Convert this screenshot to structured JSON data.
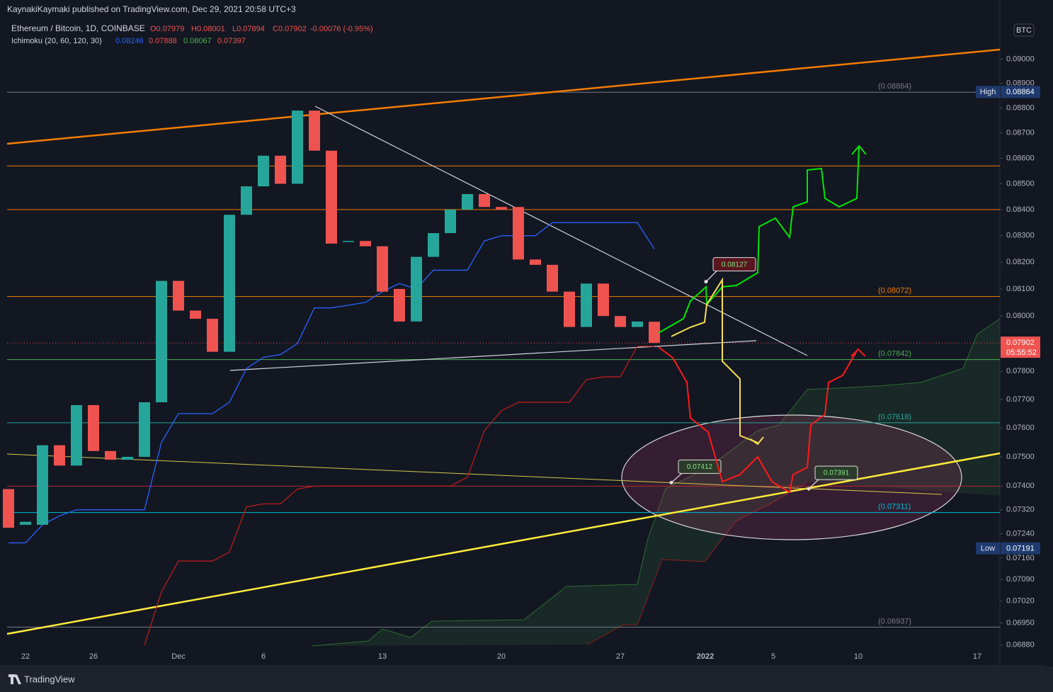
{
  "header": {
    "publisher": "KaynakiKaymaki published on TradingView.com, Dec 29, 2021 20:58 UTC+3",
    "symbol": "Ethereum / Bitcoin, 1D, COINBASE",
    "ohlc": [
      "O0.07979",
      "H0.08001",
      "L0.07894",
      "C0.07902",
      "-0.00076 (-0.95%)"
    ],
    "indicator": "Ichimoku (20, 60, 120, 30)",
    "indicator_values": [
      "0.08246",
      "0.07888",
      "0.08067",
      "0.07397"
    ]
  },
  "chart_data": {
    "type": "candlestick",
    "log_scale": true,
    "grid": false,
    "currency": "BTC",
    "categories": [
      null,
      "22",
      null,
      null,
      null,
      "26",
      null,
      null,
      null,
      null,
      "Dec",
      null,
      null,
      null,
      null,
      "6",
      null,
      null,
      null,
      null,
      null,
      null,
      "13",
      null,
      null,
      null,
      null,
      null,
      null,
      "20",
      null,
      null,
      null,
      null,
      null,
      null,
      "27",
      null,
      null,
      null,
      null,
      "2022",
      null,
      null,
      null,
      "5",
      null,
      null,
      null,
      null,
      "10",
      null,
      null,
      null,
      null,
      null,
      null,
      "17"
    ],
    "open": [
      0.0739,
      0.0727,
      0.0727,
      0.0754,
      0.0747,
      0.0768,
      0.0752,
      0.0749,
      0.075,
      0.0769,
      0.0813,
      0.0802,
      0.0799,
      0.0787,
      0.0838,
      0.0849,
      0.0861,
      0.085,
      0.0879,
      0.0863,
      0.0828,
      0.0828,
      0.0826,
      0.081,
      0.0798,
      0.0822,
      0.0831,
      0.084,
      0.0846,
      0.0841,
      0.0841,
      0.0821,
      0.0819,
      0.0809,
      0.0796,
      0.0812,
      0.08,
      0.0796,
      0.07979,
      null,
      null,
      null,
      null,
      null,
      null,
      null,
      null,
      null,
      null,
      null,
      null,
      null,
      null,
      null,
      null,
      null,
      null,
      null
    ],
    "high": {
      "text": "High",
      "value": 0.08864
    },
    "low": {
      "text": "Low",
      "value": 0.07191
    },
    "close": [
      0.0726,
      0.0728,
      0.0754,
      0.0747,
      0.0768,
      0.0752,
      0.0749,
      0.075,
      0.0769,
      0.0813,
      0.0802,
      0.0799,
      0.0787,
      0.0838,
      0.0849,
      0.0861,
      0.085,
      0.0879,
      0.0863,
      0.0827,
      0.0828,
      0.0826,
      0.0809,
      0.0798,
      0.0822,
      0.0831,
      0.084,
      0.0846,
      0.0841,
      0.084,
      0.0821,
      0.0819,
      0.0809,
      0.0796,
      0.0812,
      0.08,
      0.0796,
      0.0798,
      0.07902,
      null,
      null,
      null,
      null,
      null,
      null,
      null,
      null,
      null,
      null,
      null,
      null,
      null,
      null,
      null,
      null,
      null,
      null,
      null
    ],
    "up_color": "#26a69a",
    "down_color": "#ef5350",
    "series": [
      {
        "color": "#2962ff",
        "values": [
          0.0721,
          0.0721,
          0.0727,
          0.073,
          0.0732,
          0.0732,
          0.0732,
          0.0732,
          0.0732,
          0.0755,
          0.0765,
          0.0765,
          0.0765,
          0.0769,
          0.0781,
          0.0785,
          0.0786,
          0.079,
          0.0803,
          0.0803,
          0.0804,
          0.0805,
          0.0809,
          0.0812,
          0.081,
          0.0817,
          0.0817,
          0.0817,
          0.0828,
          0.083,
          0.083,
          0.083,
          0.0835,
          0.0835,
          0.0835,
          0.0835,
          0.0835,
          0.0835,
          0.0825,
          null,
          null,
          null,
          null,
          null,
          null,
          null,
          null,
          null,
          null,
          null,
          null,
          null,
          null,
          null,
          null,
          null,
          null,
          null
        ]
      },
      {
        "color": "#b71c1c",
        "values": [
          null,
          null,
          null,
          null,
          null,
          null,
          null,
          null,
          0.0688,
          0.0705,
          0.0715,
          0.0715,
          0.0715,
          0.0718,
          0.0733,
          0.0734,
          0.0734,
          0.0739,
          0.074,
          0.074,
          0.074,
          0.074,
          0.074,
          0.074,
          0.074,
          0.074,
          0.074,
          0.0743,
          0.0759,
          0.0766,
          0.0769,
          0.0769,
          0.0769,
          0.0769,
          0.0777,
          0.0778,
          0.0778,
          0.0789,
          0.0789,
          null,
          null,
          null,
          null,
          null,
          null,
          null,
          null,
          null,
          null,
          null,
          null,
          null,
          null,
          null,
          null,
          null,
          null,
          null
        ]
      }
    ],
    "ylim": [
      0.06815,
      0.09247
    ],
    "yticks": [
      {
        "value": 0.09,
        "label": "0.09000"
      },
      {
        "value": 0.089,
        "label": "0.08900"
      },
      {
        "value": 0.088,
        "label": "0.08800"
      },
      {
        "value": 0.087,
        "label": "0.08700"
      },
      {
        "value": 0.086,
        "label": "0.08600"
      },
      {
        "value": 0.085,
        "label": "0.08500"
      },
      {
        "value": 0.084,
        "label": "0.08400"
      },
      {
        "value": 0.083,
        "label": "0.08300"
      },
      {
        "value": 0.082,
        "label": "0.08200"
      },
      {
        "value": 0.081,
        "label": "0.08100"
      },
      {
        "value": 0.08,
        "label": "0.08000"
      },
      {
        "value": 0.078,
        "label": "0.07800"
      },
      {
        "value": 0.077,
        "label": "0.07700"
      },
      {
        "value": 0.076,
        "label": "0.07600"
      },
      {
        "value": 0.075,
        "label": "0.07500"
      },
      {
        "value": 0.074,
        "label": "0.07400"
      },
      {
        "value": 0.0732,
        "label": "0.07320"
      },
      {
        "value": 0.0724,
        "label": "0.07240"
      },
      {
        "value": 0.0716,
        "label": "0.07160"
      },
      {
        "value": 0.0709,
        "label": "0.07090"
      },
      {
        "value": 0.0702,
        "label": "0.07020"
      },
      {
        "value": 0.0695,
        "label": "0.06950"
      },
      {
        "value": 0.0688,
        "label": "0.06880"
      }
    ],
    "levels": [
      {
        "value": 0.08864,
        "label": "(0.08864)",
        "color": "#787b86"
      },
      {
        "value": 0.0857,
        "color": "#f57c00"
      },
      {
        "value": 0.084,
        "color": "#f57c00"
      },
      {
        "value": 0.08072,
        "label": "(0.08072)",
        "color": "#f57c00"
      },
      {
        "value": 0.07842,
        "label": "(0.07842)",
        "color": "#4caf50"
      },
      {
        "value": 0.07618,
        "label": "(0.07618)",
        "color": "#26a69a"
      },
      {
        "value": 0.074,
        "color": "#b22833"
      },
      {
        "value": 0.07311,
        "label": "(0.07311)",
        "color": "#00bcd4"
      },
      {
        "value": 0.06937,
        "label": "(0.06937)",
        "color": "#787b86"
      }
    ],
    "last": {
      "value": 0.07902,
      "countdown": "05:55:52"
    },
    "callouts": [
      0.08127,
      0.07412,
      0.07391
    ]
  },
  "footer": {
    "brand": "TradingView"
  }
}
